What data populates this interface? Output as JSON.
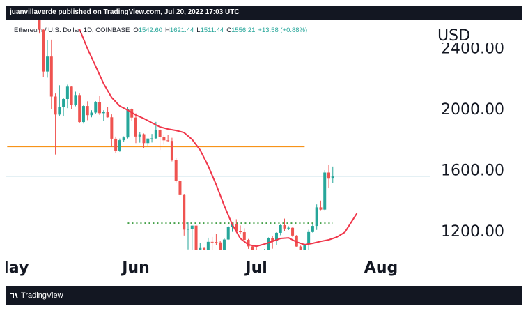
{
  "publisher_bar": "juanvillaverde published on TradingView.com, Jul 20, 2022 17:03 UTC",
  "brand": "TradingView",
  "chart_data": {
    "type": "candlestick",
    "symbol": "Ethereum / U.S. Dollar, 1D, COINBASE",
    "ohlc": [
      {
        "key": "O",
        "value": "1542.60"
      },
      {
        "key": "H",
        "value": "1621.44"
      },
      {
        "key": "L",
        "value": "1511.44"
      },
      {
        "key": "C",
        "value": "1556.21"
      }
    ],
    "change": "+13.58 (+0.88%)",
    "currency": "USD",
    "up_color": "#26a69a",
    "down_color": "#ef5350",
    "x": [
      128,
      129,
      130,
      131,
      132,
      133,
      134,
      135,
      136,
      137,
      138,
      139,
      140,
      141,
      142,
      143,
      144,
      145,
      146,
      147,
      148,
      149,
      150,
      151,
      152,
      153,
      154,
      155,
      156,
      157,
      158,
      159,
      160,
      161,
      162,
      163,
      164,
      165,
      166,
      167,
      168,
      169,
      170,
      171,
      172,
      173,
      174,
      175,
      176,
      177,
      178,
      179,
      180,
      181,
      182,
      183,
      184,
      185,
      186,
      187,
      188,
      189,
      190,
      191,
      192,
      193,
      194,
      195,
      196,
      197,
      198,
      199,
      200,
      201
    ],
    "open": [
      2636,
      2518,
      2244,
      2342,
      2080,
      1962,
      2010,
      2064,
      2145,
      2024,
      2090,
      1913,
      2018,
      1958,
      1975,
      2043,
      1971,
      1978,
      1944,
      1804,
      1726,
      1794,
      1812,
      1997,
      1942,
      1818,
      1833,
      1775,
      1805,
      1806,
      1859,
      1814,
      1793,
      1789,
      1663,
      1529,
      1434,
      1208,
      1212,
      1234,
      1067,
      1087,
      994,
      1128,
      1127,
      1124,
      1050,
      1143,
      1225,
      1243,
      1198,
      1191,
      1141,
      1098,
      1068,
      1060,
      1068,
      1074,
      1151,
      1134,
      1187,
      1237,
      1215,
      1220,
      1169,
      1097,
      1038,
      1112,
      1192,
      1232,
      1354,
      1339,
      1582,
      1542.6
    ],
    "high": [
      2640,
      2523,
      2450,
      2453,
      2100,
      2154,
      2070,
      2158,
      2146,
      2112,
      2100,
      2027,
      2049,
      1990,
      2050,
      2083,
      1990,
      2011,
      1963,
      1818,
      1805,
      1819,
      2011,
      2002,
      1970,
      1848,
      1838,
      1806,
      1835,
      1914,
      1867,
      1831,
      1830,
      1810,
      1678,
      1540,
      1440,
      1255,
      1235,
      1240,
      1120,
      1090,
      1155,
      1160,
      1180,
      1136,
      1150,
      1232,
      1250,
      1276,
      1235,
      1217,
      1147,
      1100,
      1098,
      1074,
      1081,
      1157,
      1165,
      1191,
      1242,
      1280,
      1230,
      1226,
      1173,
      1103,
      1115,
      1207,
      1243,
      1373,
      1398,
      1597,
      1633,
      1621.44
    ],
    "low": [
      2493,
      2210,
      2204,
      1999,
      1700,
      1951,
      1952,
      2004,
      1999,
      2016,
      1908,
      1903,
      1925,
      1944,
      1967,
      1959,
      1918,
      1942,
      1749,
      1712,
      1718,
      1785,
      1805,
      1918,
      1775,
      1778,
      1740,
      1758,
      1779,
      1804,
      1730,
      1765,
      1782,
      1655,
      1517,
      1422,
      1169,
      1078,
      1011,
      1058,
      1057,
      880,
      948,
      1066,
      1108,
      1045,
      1042,
      1140,
      1193,
      1198,
      1177,
      1138,
      1082,
      1002,
      1032,
      1041,
      1036,
      1070,
      1083,
      1106,
      1171,
      1200,
      1205,
      1160,
      1094,
      1033,
      1006,
      1077,
      1188,
      1206,
      1335,
      1336,
      1479,
      1511.44
    ],
    "close": [
      2518,
      2244,
      2342,
      2080,
      1962,
      2010,
      2064,
      2145,
      2024,
      2090,
      1913,
      2018,
      1958,
      1975,
      2043,
      1971,
      1978,
      1944,
      1804,
      1726,
      1794,
      1812,
      1997,
      1942,
      1818,
      1833,
      1775,
      1805,
      1806,
      1859,
      1814,
      1793,
      1789,
      1663,
      1529,
      1434,
      1208,
      1212,
      1234,
      1067,
      1087,
      994,
      1128,
      1127,
      1124,
      1050,
      1143,
      1225,
      1243,
      1198,
      1191,
      1141,
      1098,
      1068,
      1060,
      1068,
      1074,
      1151,
      1134,
      1187,
      1237,
      1215,
      1220,
      1169,
      1097,
      1038,
      1112,
      1192,
      1232,
      1354,
      1339,
      1582,
      1542,
      1556.21
    ],
    "ma": {
      "color": "#f0364a",
      "x": [
        138,
        140,
        142,
        144,
        146,
        148,
        150,
        152,
        154,
        156,
        158,
        160,
        162,
        164,
        166,
        168,
        170,
        172,
        174,
        176,
        178,
        180,
        182,
        184,
        186,
        188,
        190,
        192,
        194,
        196,
        198,
        200,
        202,
        204,
        206,
        207
      ],
      "values": [
        2521,
        2393,
        2279,
        2164,
        2073,
        2018,
        1991,
        1959,
        1936,
        1908,
        1881,
        1867,
        1858,
        1844,
        1799,
        1730,
        1625,
        1502,
        1365,
        1241,
        1150,
        1109,
        1099,
        1113,
        1131,
        1150,
        1154,
        1127,
        1109,
        1118,
        1131,
        1141,
        1159,
        1191,
        1273,
        1314
      ]
    },
    "levels": [
      {
        "value": 1753,
        "x": [
          120,
          194
        ],
        "color": "#f7931a",
        "style": "solid"
      },
      {
        "value": 1250,
        "x": [
          150,
          201
        ],
        "color": "#43a047",
        "style": "dotted"
      }
    ],
    "price_line_color": "#d4e6ee",
    "xlim": [
      119.6,
      225.3
    ],
    "xticks": [
      {
        "value": 121,
        "label": "May"
      },
      {
        "value": 152,
        "label": "Jun"
      },
      {
        "value": 182,
        "label": "Jul"
      },
      {
        "value": 213,
        "label": "Aug"
      }
    ],
    "ylim": [
      1077,
      2585
    ],
    "yticks": [
      {
        "value": 1200,
        "label": "1200.00"
      },
      {
        "value": 1600,
        "label": "1600.00"
      },
      {
        "value": 2000,
        "label": "2000.00"
      },
      {
        "value": 2400,
        "label": "2400.00"
      }
    ]
  }
}
